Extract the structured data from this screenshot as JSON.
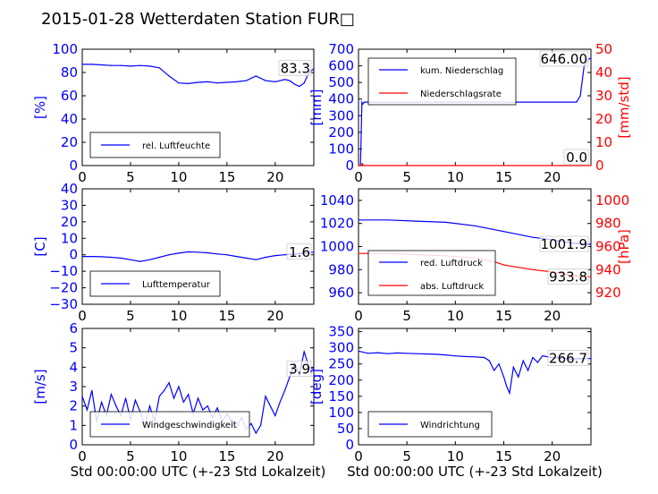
{
  "title": "2015-01-28 Wetterdaten Station FUR□",
  "colors": {
    "blue": "#0000ff",
    "red": "#ff0000",
    "black": "#000000",
    "lightblue": "#8888ff"
  },
  "chart_data": [
    {
      "id": "humidity",
      "type": "line",
      "ylabel": "[%]",
      "xlabel": "",
      "xlim": [
        0,
        24
      ],
      "ylim": [
        0,
        100
      ],
      "xticks": [
        "0",
        "5",
        "10",
        "15",
        "20"
      ],
      "yticks": [
        "0",
        "20",
        "40",
        "60",
        "80",
        "100"
      ],
      "last_value": "83.3",
      "legend": [
        "rel. Luftfeuchte"
      ],
      "series": [
        {
          "name": "rel. Luftfeuchte",
          "color": "#0000ff",
          "x": [
            0,
            1,
            2,
            3,
            4,
            5,
            6,
            7,
            8,
            9,
            10,
            11,
            12,
            13,
            14,
            15,
            16,
            17,
            18,
            19,
            20,
            21,
            21.5,
            22,
            22.5,
            23,
            23.5,
            24
          ],
          "y": [
            87,
            87,
            86.5,
            86,
            86,
            85.5,
            86,
            85.5,
            84,
            77,
            71,
            70.5,
            71.5,
            72,
            71,
            71.5,
            72,
            73,
            77,
            73,
            72,
            74,
            73,
            70,
            68,
            71,
            80,
            83.3
          ]
        }
      ]
    },
    {
      "id": "precip",
      "type": "line",
      "ylabel": "[mm]",
      "ylabel2": "[mm/std]",
      "xlabel": "",
      "xlim": [
        0,
        24
      ],
      "ylim": [
        0,
        700
      ],
      "ylim2": [
        0,
        50
      ],
      "xticks": [
        "0",
        "5",
        "10",
        "15",
        "20"
      ],
      "yticks": [
        "0",
        "100",
        "200",
        "300",
        "400",
        "500",
        "600",
        "700"
      ],
      "yticks2": [
        "0",
        "10",
        "20",
        "30",
        "40",
        "50"
      ],
      "last_value": "646.00",
      "last_value2": "0.0",
      "legend": [
        "kum. Niederschlag",
        "Niederschlagsrate"
      ],
      "series": [
        {
          "name": "kum. Niederschlag",
          "color": "#0000ff",
          "axis": "left",
          "x": [
            0,
            0.2,
            0.35,
            0.45,
            0.6,
            5,
            10,
            15,
            20,
            22.5,
            22.9,
            23.3,
            23.7,
            24
          ],
          "y": [
            0,
            0,
            380,
            370,
            382,
            382,
            382,
            382,
            382,
            382,
            420,
            600,
            640,
            646
          ]
        },
        {
          "name": "Niederschlagsrate",
          "color": "#ff0000",
          "axis": "right",
          "x": [
            0,
            0.3,
            0.4,
            0.5,
            24
          ],
          "y": [
            0,
            0,
            0.8,
            0,
            0
          ]
        }
      ]
    },
    {
      "id": "temperature",
      "type": "line",
      "ylabel": "[C]",
      "xlabel": "",
      "xlim": [
        0,
        24
      ],
      "ylim": [
        -30,
        40
      ],
      "xticks": [
        "0",
        "5",
        "10",
        "15",
        "20"
      ],
      "yticks": [
        "−30",
        "−20",
        "−10",
        "0",
        "10",
        "20",
        "30",
        "40"
      ],
      "last_value": "1.6",
      "legend": [
        "Lufttemperatur"
      ],
      "series": [
        {
          "name": "Lufttemperatur",
          "color": "#0000ff",
          "x": [
            0,
            1,
            2,
            3,
            4,
            5,
            6,
            7,
            8,
            9,
            10,
            11,
            12,
            13,
            14,
            15,
            16,
            17,
            18,
            19,
            20,
            21,
            22,
            23,
            24
          ],
          "y": [
            -1,
            -1,
            -1.2,
            -1.5,
            -2,
            -3,
            -4,
            -3,
            -1.5,
            0,
            1,
            1.8,
            1.6,
            1.2,
            0.5,
            0,
            -1,
            -2,
            -3,
            -1.5,
            -0.5,
            0,
            0.5,
            1,
            1.6
          ]
        }
      ]
    },
    {
      "id": "pressure",
      "type": "line",
      "ylabel": "",
      "ylabel2": "[hPa]",
      "xlabel": "",
      "xlim": [
        0,
        24
      ],
      "ylim": [
        950,
        1050
      ],
      "ylim2": [
        910,
        1010
      ],
      "xticks": [
        "0",
        "5",
        "10",
        "15",
        "20"
      ],
      "yticks": [
        "960",
        "980",
        "1000",
        "1020",
        "1040"
      ],
      "yticks2": [
        "920",
        "940",
        "960",
        "980",
        "1000"
      ],
      "last_value": "1001.9",
      "last_value2": "933.8",
      "legend": [
        "red. Luftdruck",
        "abs. Luftdruck"
      ],
      "series": [
        {
          "name": "red. Luftdruck",
          "color": "#0000ff",
          "axis": "left",
          "x": [
            0,
            3,
            6,
            9,
            12,
            15,
            18,
            20,
            22,
            24
          ],
          "y": [
            1023,
            1023,
            1022,
            1021,
            1018,
            1013,
            1008,
            1006,
            1003,
            1001.9
          ]
        },
        {
          "name": "abs. Luftdruck",
          "color": "#ff0000",
          "axis": "right",
          "x": [
            0,
            3,
            6,
            9,
            12,
            14,
            15,
            18,
            20,
            22,
            24
          ],
          "y": [
            954,
            954,
            953,
            952,
            950,
            947,
            944,
            940,
            938,
            935,
            933.8
          ]
        }
      ]
    },
    {
      "id": "wind",
      "type": "line",
      "ylabel": "[m/s]",
      "xlabel": "Std 00:00:00 UTC (+-23 Std Lokalzeit)",
      "xlim": [
        0,
        24
      ],
      "ylim": [
        0,
        6
      ],
      "xticks": [
        "0",
        "5",
        "10",
        "15",
        "20"
      ],
      "yticks": [
        "0",
        "1",
        "2",
        "3",
        "4",
        "5",
        "6"
      ],
      "last_value": "3.9",
      "legend": [
        "Windgeschwindigkeit"
      ],
      "series": [
        {
          "name": "Windgeschwindigkeit",
          "color": "#0000ff",
          "x": [
            0,
            0.5,
            1,
            1.5,
            2,
            2.5,
            3,
            3.5,
            4,
            4.5,
            5,
            5.5,
            6,
            6.5,
            7,
            7.5,
            8,
            8.5,
            9,
            9.5,
            10,
            10.5,
            11,
            11.5,
            12,
            12.5,
            13,
            13.5,
            14,
            14.5,
            15,
            15.5,
            16,
            16.5,
            17,
            17.5,
            18,
            18.5,
            19,
            19.5,
            20,
            20.5,
            21,
            21.5,
            22,
            22.5,
            23,
            23.5,
            24
          ],
          "y": [
            2.5,
            1.8,
            2.8,
            1.2,
            2.2,
            1.5,
            2.6,
            2.0,
            1.5,
            2.4,
            1.3,
            2.3,
            1.7,
            1.0,
            2.0,
            1.2,
            2.5,
            2.8,
            3.2,
            2.4,
            3.0,
            2.2,
            2.6,
            1.6,
            2.4,
            1.8,
            2.0,
            1.4,
            1.9,
            1.2,
            1.6,
            1.2,
            0.9,
            1.4,
            0.8,
            1.1,
            0.6,
            1.0,
            2.5,
            2.0,
            1.5,
            2.2,
            2.8,
            3.5,
            4.2,
            3.6,
            4.8,
            4.0,
            3.9
          ]
        }
      ]
    },
    {
      "id": "direction",
      "type": "line",
      "ylabel": "[deg]",
      "xlabel": "Std 00:00:00 UTC (+-23 Std Lokalzeit)",
      "xlim": [
        0,
        24
      ],
      "ylim": [
        0,
        360
      ],
      "xticks": [
        "0",
        "5",
        "10",
        "15",
        "20"
      ],
      "yticks": [
        "0",
        "50",
        "100",
        "150",
        "200",
        "250",
        "300",
        "350"
      ],
      "last_value": "266.7",
      "legend": [
        "Windrichtung"
      ],
      "series": [
        {
          "name": "Windrichtung",
          "color": "#0000ff",
          "x": [
            0,
            1,
            2,
            3,
            4,
            5,
            6,
            7,
            8,
            9,
            10,
            11,
            12,
            13,
            13.5,
            14,
            14.5,
            15,
            15.3,
            15.6,
            16,
            16.5,
            17,
            17.5,
            18,
            18.5,
            19,
            20,
            21,
            22,
            23,
            24
          ],
          "y": [
            290,
            283,
            285,
            282,
            284,
            283,
            282,
            281,
            280,
            278,
            275,
            273,
            272,
            270,
            260,
            230,
            250,
            210,
            180,
            160,
            240,
            210,
            260,
            230,
            270,
            255,
            275,
            270,
            268,
            265,
            267,
            266.7
          ]
        }
      ]
    }
  ]
}
